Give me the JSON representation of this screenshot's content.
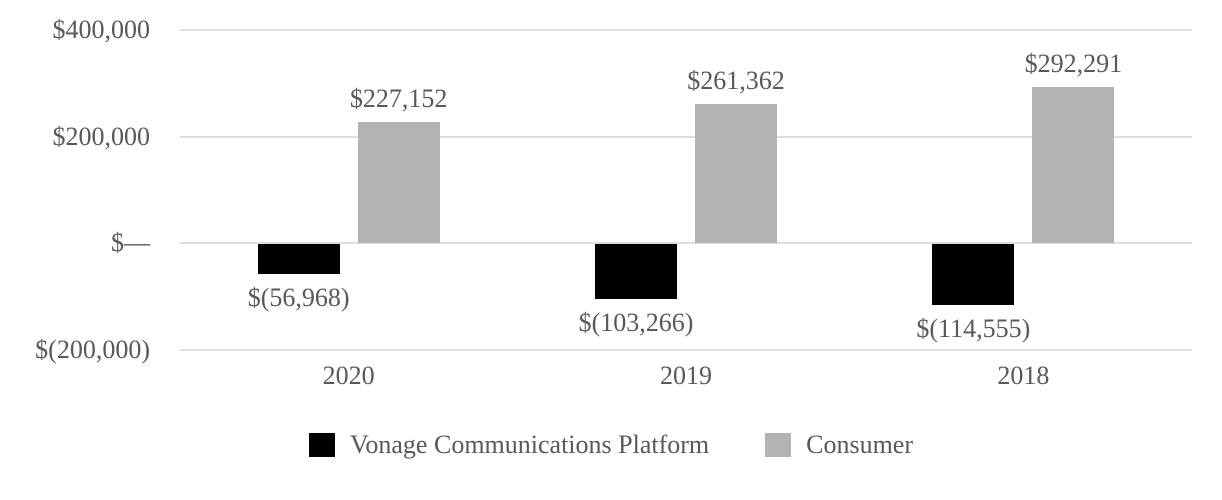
{
  "chart_data": {
    "type": "bar",
    "title": "",
    "categories": [
      "2020",
      "2019",
      "2018"
    ],
    "series": [
      {
        "name": "Vonage Communications Platform",
        "color": "#000000",
        "values": [
          -56968,
          -103266,
          -114555
        ],
        "data_labels": [
          "$(56,968)",
          "$(103,266)",
          "$(114,555)"
        ]
      },
      {
        "name": "Consumer",
        "color": "#b3b3b3",
        "values": [
          227152,
          261362,
          292291
        ],
        "data_labels": [
          "$227,152",
          "$261,362",
          "$292,291"
        ]
      }
    ],
    "y_axis": {
      "ticks": [
        {
          "label": "$400,000",
          "value": 400000
        },
        {
          "label": "$200,000",
          "value": 200000
        },
        {
          "label": "$—",
          "value": 0
        },
        {
          "label": "$(200,000)",
          "value": -200000
        }
      ],
      "ylim": [
        -200000,
        400000
      ]
    },
    "grid": true,
    "legend_position": "bottom",
    "text_color": "#595959",
    "gridline_color": "#dfdfdf"
  }
}
